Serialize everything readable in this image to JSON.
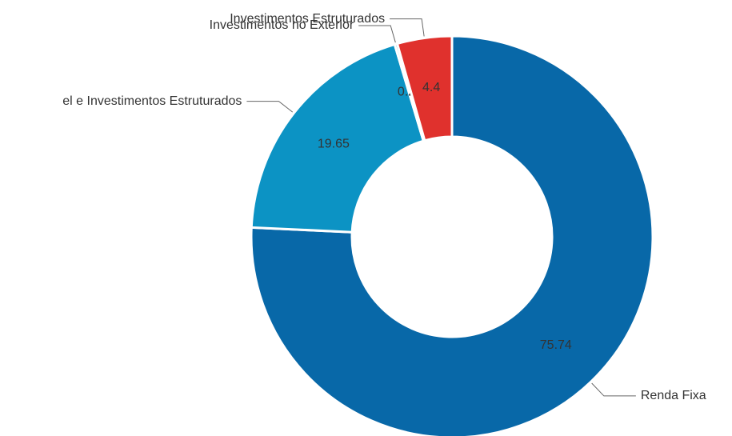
{
  "chart_data": {
    "type": "donut",
    "categories": [
      "Renda Fixa",
      "el e Investimentos Estruturados",
      "Investimentos no Exterior",
      "Investimentos Estruturados"
    ],
    "values": [
      75.74,
      19.65,
      0.21,
      4.4
    ],
    "colors": [
      "#0868a8",
      "#0c93c4",
      "#12a5d6",
      "#e0312d"
    ]
  }
}
